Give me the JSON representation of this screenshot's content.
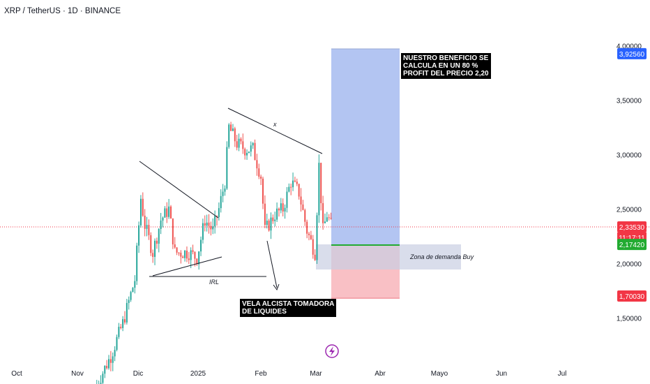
{
  "title": "XRP / TetherUS · 1D · BINANCE",
  "notes": {
    "profit": [
      "NUESTRO BENEFICIO SE",
      "CALCULA EN UN 80 %",
      "PROFIT DEL PRECIO 2,20"
    ],
    "candle": [
      "VELA ALCISTA TOMADORA",
      "DE LIQUIDES"
    ],
    "zone": "Zona de demanda Buy",
    "irl": "IRL",
    "x_mark": "x"
  },
  "price_tags": [
    {
      "label": "3,92560",
      "value": 3.9256,
      "color": "#2962ff"
    },
    {
      "label": "2,33530",
      "value": 2.3353,
      "color": "#f23645",
      "sub": "11:17:11"
    },
    {
      "label": "2,17420",
      "value": 2.1742,
      "color": "#22ab31"
    },
    {
      "label": "1,70030",
      "value": 1.7003,
      "color": "#f23645"
    }
  ],
  "colors": {
    "up": "#26a69a",
    "down": "#ef5350",
    "target": "#b3c5f2",
    "stop": "#f9c0c5",
    "entry": "#22ab31",
    "zone": "#d6dbe9",
    "current": "#f23645"
  },
  "icons": {
    "lightning": "lightning-icon"
  },
  "chart_data": {
    "type": "candlestick",
    "title": "XRP / TetherUS · 1D · BINANCE",
    "x_ticks": [
      "Oct",
      "Nov",
      "Dic",
      "2025",
      "Feb",
      "Mar",
      "Abr",
      "Mayo",
      "Jun",
      "Jul"
    ],
    "y_ticks": [
      "1,50000",
      "2,00000",
      "2,50000",
      "3,00000",
      "3,50000",
      "4,00000"
    ],
    "y_tick_values": [
      1.5,
      2.0,
      2.5,
      3.0,
      3.5,
      4.0
    ],
    "ylim": [
      0.75,
      4.05
    ],
    "current_price": 2.3353,
    "position": {
      "entry": 2.1742,
      "target": 3.9256,
      "stop": 1.7003,
      "zone": [
        1.93,
        2.19
      ]
    },
    "series_anchors": [
      [
        "2024-11-10",
        0.85
      ],
      [
        "2024-11-18",
        1.15
      ],
      [
        "2024-11-24",
        1.45
      ],
      [
        "2024-11-30",
        1.85
      ],
      [
        "2024-12-03",
        2.6
      ],
      [
        "2024-12-05",
        2.35
      ],
      [
        "2024-12-09",
        2.1
      ],
      [
        "2024-12-13",
        2.4
      ],
      [
        "2024-12-17",
        2.5
      ],
      [
        "2024-12-20",
        2.1
      ],
      [
        "2024-12-27",
        2.1
      ],
      [
        "2024-12-31",
        2.05
      ],
      [
        "2025-01-04",
        2.4
      ],
      [
        "2025-01-08",
        2.3
      ],
      [
        "2025-01-11",
        2.5
      ],
      [
        "2025-01-14",
        2.75
      ],
      [
        "2025-01-16",
        3.25
      ],
      [
        "2025-01-20",
        3.1
      ],
      [
        "2025-01-24",
        3.05
      ],
      [
        "2025-01-28",
        3.05
      ],
      [
        "2025-02-01",
        2.8
      ],
      [
        "2025-02-03",
        2.3
      ],
      [
        "2025-02-08",
        2.45
      ],
      [
        "2025-02-12",
        2.5
      ],
      [
        "2025-02-16",
        2.75
      ],
      [
        "2025-02-20",
        2.65
      ],
      [
        "2025-02-24",
        2.3
      ],
      [
        "2025-02-28",
        2.1
      ],
      [
        "2025-03-02",
        2.9
      ],
      [
        "2025-03-04",
        2.3
      ],
      [
        "2025-03-06",
        2.45
      ],
      [
        "2025-03-08",
        2.35
      ]
    ]
  }
}
